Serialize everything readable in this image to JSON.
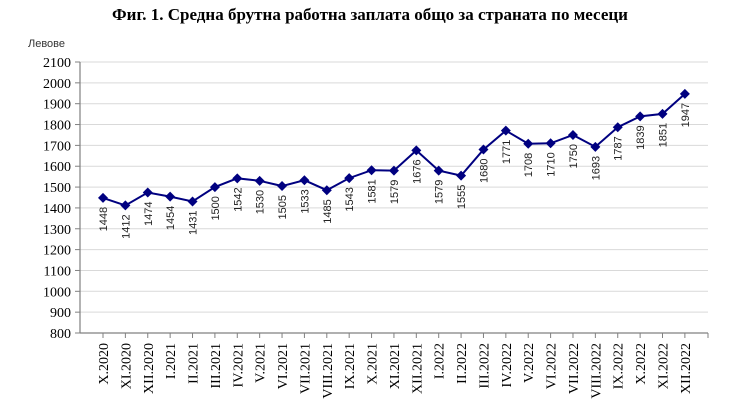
{
  "chart_data": {
    "type": "line",
    "title": "Фиг. 1. Средна брутна работна заплата общо за страната по месеци",
    "xlabel": "",
    "ylabel": "Левове",
    "ylim": [
      800,
      2100
    ],
    "yticks": [
      800,
      900,
      1000,
      1100,
      1200,
      1300,
      1400,
      1500,
      1600,
      1700,
      1800,
      1900,
      2000,
      2100
    ],
    "grid": true,
    "legend": null,
    "categories": [
      "X.2020",
      "XI.2020",
      "XII.2020",
      "I.2021",
      "II.2021",
      "III.2021",
      "IV.2021",
      "V.2021",
      "VI.2021",
      "VII.2021",
      "VIII.2021",
      "IX.2021",
      "X.2021",
      "XI.2021",
      "XII.2021",
      "I.2022",
      "II.2022",
      "III.2022",
      "IV.2022",
      "V.2022",
      "VI.2022",
      "VII.2022",
      "VIII.2022",
      "IX.2022",
      "X.2022",
      "XI.2022",
      "XII.2022"
    ],
    "series": [
      {
        "name": "Средна брутна работна заплата",
        "color": "#000080",
        "marker": "diamond",
        "values": [
          1448,
          1412,
          1474,
          1454,
          1431,
          1500,
          1542,
          1530,
          1505,
          1533,
          1485,
          1543,
          1581,
          1579,
          1676,
          1579,
          1555,
          1680,
          1771,
          1708,
          1710,
          1750,
          1693,
          1787,
          1839,
          1851,
          1947
        ]
      }
    ],
    "data_labels": "rotated-vertical-below"
  },
  "colors": {
    "line": "#000080",
    "grid": "#d9d9d9",
    "axis": "#808080"
  }
}
